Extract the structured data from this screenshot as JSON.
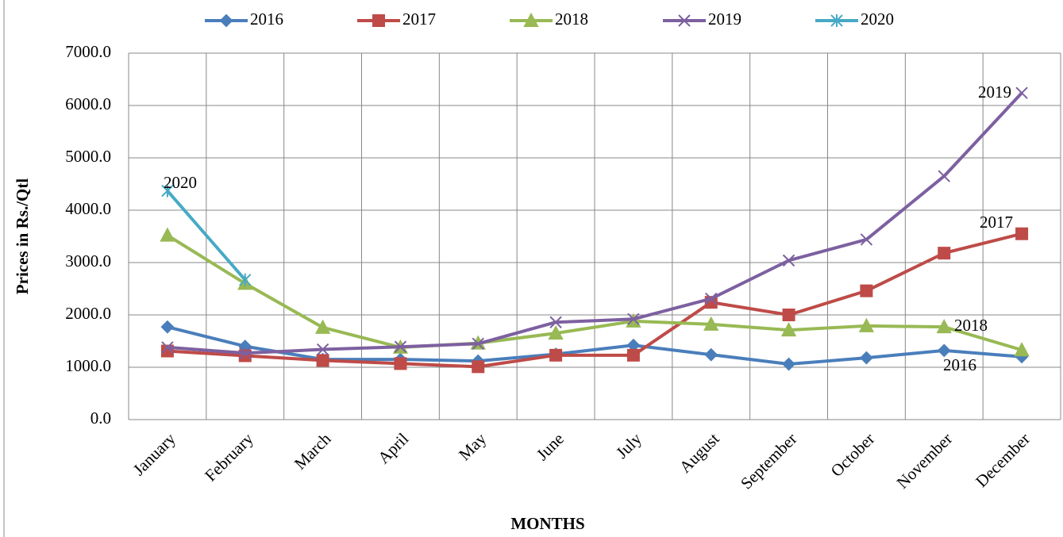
{
  "chart_data": {
    "type": "line",
    "y_label": "Prices in Rs./Qtl",
    "x_label": "MONTHS",
    "categories": [
      "January",
      "February",
      "March",
      "April",
      "May",
      "June",
      "July",
      "August",
      "September",
      "October",
      "November",
      "December"
    ],
    "series": [
      {
        "name": "2016",
        "color": "#4a7ebb",
        "marker": "diamond",
        "values": [
          1770,
          1400,
          1150,
          1150,
          1120,
          1250,
          1420,
          1240,
          1060,
          1180,
          1320,
          1200
        ]
      },
      {
        "name": "2017",
        "color": "#be4b48",
        "marker": "square",
        "values": [
          1310,
          1220,
          1130,
          1070,
          1010,
          1230,
          1230,
          2240,
          2000,
          2460,
          3180,
          3550
        ]
      },
      {
        "name": "2018",
        "color": "#98b954",
        "marker": "triangle",
        "values": [
          3520,
          2600,
          1760,
          1380,
          1460,
          1650,
          1880,
          1820,
          1710,
          1790,
          1770,
          1330
        ]
      },
      {
        "name": "2019",
        "color": "#7d60a0",
        "marker": "x",
        "values": [
          1380,
          1270,
          1340,
          1390,
          1450,
          1860,
          1920,
          2310,
          3040,
          3440,
          4650,
          6240
        ]
      },
      {
        "name": "2020",
        "color": "#46aac5",
        "marker": "asterisk",
        "values": [
          4370,
          2670,
          null,
          null,
          null,
          null,
          null,
          null,
          null,
          null,
          null,
          null
        ]
      }
    ],
    "ylim": [
      0,
      7000
    ],
    "yticks": [
      {
        "value": 0,
        "label": "0.0"
      },
      {
        "value": 1000,
        "label": "1000.0"
      },
      {
        "value": 2000,
        "label": "2000.0"
      },
      {
        "value": 3000,
        "label": "3000.0"
      },
      {
        "value": 4000,
        "label": "4000.0"
      },
      {
        "value": 5000,
        "label": "5000.0"
      },
      {
        "value": 6000,
        "label": "6000.0"
      },
      {
        "value": 7000,
        "label": "7000.0"
      }
    ],
    "grid": true,
    "legend": "top",
    "annotations": [
      "2020",
      "2019",
      "2017",
      "2018",
      "2016"
    ]
  }
}
